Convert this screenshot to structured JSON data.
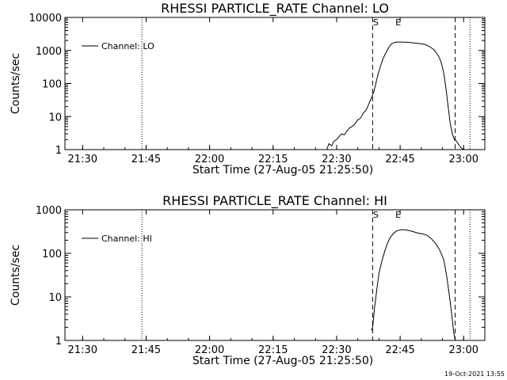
{
  "footer": {
    "timestamp": "19-Oct-2021 13:55"
  },
  "chart_data": [
    {
      "type": "line",
      "title": "RHESSI PARTICLE_RATE Channel: LO",
      "xlabel": "Start Time (27-Aug-05 21:25:50)",
      "ylabel": "Counts/sec",
      "xlim": [
        "21:25:50",
        "23:05:00"
      ],
      "ylim": [
        1,
        10000
      ],
      "yscale": "log",
      "xticks": [
        "21:30",
        "21:45",
        "22:00",
        "22:15",
        "22:30",
        "22:45",
        "23:00"
      ],
      "yticks": [
        "1",
        "10",
        "100",
        "1000",
        "10000"
      ],
      "legend": {
        "position": "top-left",
        "entries": [
          "Channel: LO"
        ]
      },
      "markers": [
        {
          "label": "S",
          "time": "22:38:30",
          "style": "dashed"
        },
        {
          "label": "E",
          "time": "22:44:10",
          "style": "none"
        },
        {
          "label": "",
          "time": "22:58:00",
          "style": "dashed"
        },
        {
          "label": "",
          "time": "23:01:30",
          "style": "dotted"
        },
        {
          "label": "",
          "time": "21:44:00",
          "style": "dotted"
        }
      ],
      "series": [
        {
          "name": "Channel: LO",
          "color": "#000000",
          "x": [
            "22:27:10",
            "22:27:40",
            "22:28:10",
            "22:28:50",
            "22:29:20",
            "22:30:00",
            "22:30:30",
            "22:31:10",
            "22:31:50",
            "22:32:20",
            "22:33:00",
            "22:33:40",
            "22:34:20",
            "22:35:00",
            "22:35:40",
            "22:36:20",
            "22:37:00",
            "22:37:40",
            "22:38:20",
            "22:38:50",
            "22:39:20",
            "22:39:50",
            "22:40:20",
            "22:40:50",
            "22:41:20",
            "22:41:50",
            "22:42:20",
            "22:43:00",
            "22:43:40",
            "22:44:20",
            "22:45:00",
            "22:46:00",
            "22:47:00",
            "22:48:00",
            "22:49:00",
            "22:50:00",
            "22:51:00",
            "22:52:00",
            "22:53:00",
            "22:54:00",
            "22:54:40",
            "22:55:20",
            "22:55:50",
            "22:56:20",
            "22:56:50",
            "22:57:20",
            "22:57:50",
            "22:58:20",
            "22:58:50",
            "22:59:30",
            "23:00:00"
          ],
          "y": [
            1,
            1,
            1.5,
            1.3,
            1.8,
            2,
            2.4,
            3,
            2.8,
            3.5,
            4.5,
            5,
            6,
            8,
            9,
            13,
            16,
            25,
            40,
            60,
            110,
            200,
            330,
            500,
            720,
            950,
            1250,
            1600,
            1750,
            1800,
            1800,
            1780,
            1760,
            1700,
            1650,
            1600,
            1500,
            1300,
            1050,
            700,
            450,
            200,
            70,
            20,
            6,
            3,
            2,
            1.8,
            1.4,
            1.1,
            1
          ]
        }
      ]
    },
    {
      "type": "line",
      "title": "RHESSI PARTICLE_RATE Channel: HI",
      "xlabel": "Start Time (27-Aug-05 21:25:50)",
      "ylabel": "Counts/sec",
      "xlim": [
        "21:25:50",
        "23:05:00"
      ],
      "ylim": [
        1,
        1000
      ],
      "yscale": "log",
      "xticks": [
        "21:30",
        "21:45",
        "22:00",
        "22:15",
        "22:30",
        "22:45",
        "23:00"
      ],
      "yticks": [
        "1",
        "10",
        "100",
        "1000"
      ],
      "legend": {
        "position": "top-left",
        "entries": [
          "Channel: HI"
        ]
      },
      "markers": [
        {
          "label": "S",
          "time": "22:38:30",
          "style": "dashed"
        },
        {
          "label": "E",
          "time": "22:44:10",
          "style": "none"
        },
        {
          "label": "",
          "time": "22:58:00",
          "style": "dashed"
        },
        {
          "label": "",
          "time": "23:01:30",
          "style": "dotted"
        },
        {
          "label": "",
          "time": "21:44:00",
          "style": "dotted"
        }
      ],
      "series": [
        {
          "name": "Channel: HI",
          "color": "#000000",
          "x": [
            "22:38:10",
            "22:38:30",
            "22:39:00",
            "22:39:30",
            "22:40:00",
            "22:40:40",
            "22:41:20",
            "22:42:00",
            "22:42:40",
            "22:43:20",
            "22:44:00",
            "22:44:40",
            "22:45:20",
            "22:46:20",
            "22:47:20",
            "22:48:20",
            "22:49:20",
            "22:50:20",
            "22:51:20",
            "22:52:20",
            "22:53:20",
            "22:54:20",
            "22:55:20",
            "22:56:00",
            "22:56:40",
            "22:57:20",
            "22:57:40",
            "22:58:00"
          ],
          "y": [
            1.7,
            2,
            6,
            15,
            35,
            65,
            110,
            170,
            230,
            280,
            320,
            340,
            350,
            345,
            330,
            310,
            290,
            280,
            260,
            220,
            170,
            120,
            70,
            30,
            10,
            3,
            1.5,
            1
          ]
        }
      ]
    }
  ]
}
